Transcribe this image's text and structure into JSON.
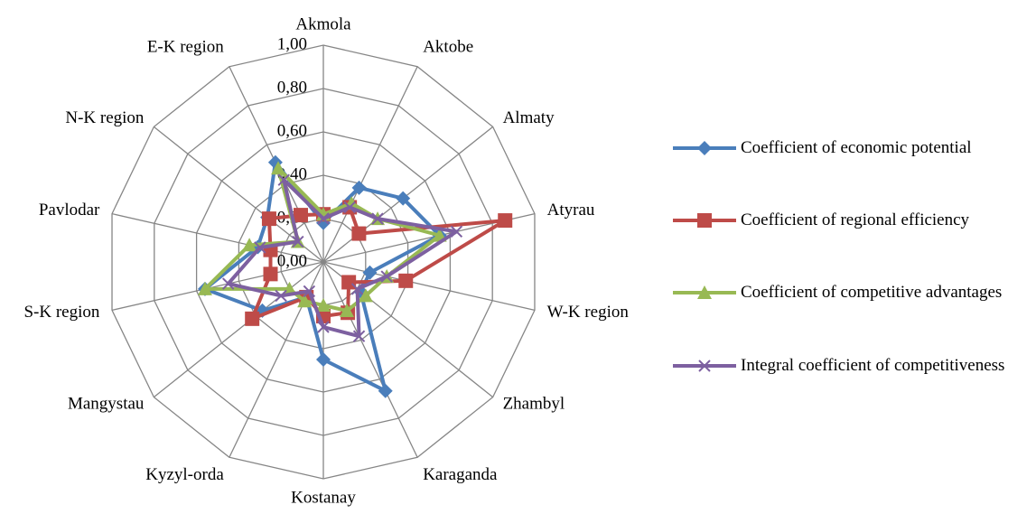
{
  "chart_data": {
    "type": "radar",
    "categories": [
      "Akmola",
      "Aktobe",
      "Almaty",
      "Atyrau",
      "W-K region",
      "Zhambyl",
      "Karaganda",
      "Kostanay",
      "Kyzyl-orda",
      "Mangystau",
      "S-K region",
      "Pavlodar",
      "N-K region",
      "E-K region"
    ],
    "ylim": [
      0,
      1
    ],
    "yticks": [
      {
        "value": 0,
        "label": "0,00"
      },
      {
        "value": 0.2,
        "label": "0,20"
      },
      {
        "value": 0.4,
        "label": "0,40"
      },
      {
        "value": 0.6,
        "label": "0,60"
      },
      {
        "value": 0.8,
        "label": "0,80"
      },
      {
        "value": 1,
        "label": "1,00"
      }
    ],
    "grid": true,
    "series": [
      {
        "name": "Coefficient of economic potential",
        "color": "#4a7ebb",
        "values": [
          0.18,
          0.38,
          0.47,
          0.55,
          0.22,
          0.22,
          0.66,
          0.45,
          0.18,
          0.36,
          0.56,
          0.31,
          0.33,
          0.51
        ]
      },
      {
        "name": "Coefficient of regional efficiency",
        "color": "#be4b48",
        "values": [
          0.22,
          0.28,
          0.21,
          0.86,
          0.39,
          0.15,
          0.26,
          0.25,
          0.18,
          0.42,
          0.25,
          0.25,
          0.32,
          0.24
        ]
      },
      {
        "name": "Coefficient of competitive advantages",
        "color": "#98b954",
        "values": [
          0.22,
          0.3,
          0.32,
          0.55,
          0.3,
          0.25,
          0.25,
          0.2,
          0.2,
          0.2,
          0.56,
          0.35,
          0.15,
          0.48
        ]
      },
      {
        "name": "Integral coefficient of competitiveness",
        "color": "#7d60a0",
        "values": [
          0.2,
          0.28,
          0.32,
          0.63,
          0.3,
          0.2,
          0.38,
          0.3,
          0.15,
          0.25,
          0.45,
          0.3,
          0.15,
          0.42
        ]
      }
    ]
  }
}
